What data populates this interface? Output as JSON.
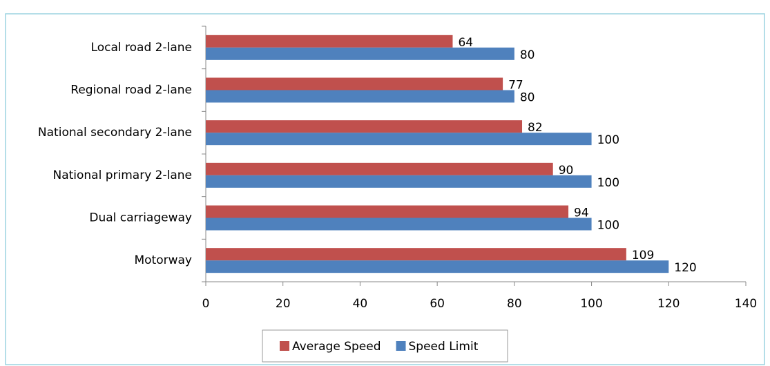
{
  "chart_data": {
    "type": "bar",
    "orientation": "horizontal",
    "categories": [
      "Local road 2-lane",
      "Regional road 2-lane",
      "National secondary 2-lane",
      "National primary 2-lane",
      "Dual carriageway",
      "Motorway"
    ],
    "series": [
      {
        "name": "Average Speed",
        "color": "#c0504d",
        "values": [
          64,
          77,
          82,
          90,
          94,
          109
        ]
      },
      {
        "name": "Speed Limit",
        "color": "#4f81bd",
        "values": [
          80,
          80,
          100,
          100,
          100,
          120
        ]
      }
    ],
    "xlim": [
      0,
      140
    ],
    "xticks": [
      0,
      20,
      40,
      60,
      80,
      100,
      120,
      140
    ],
    "grid": false,
    "legend": "bottom"
  }
}
